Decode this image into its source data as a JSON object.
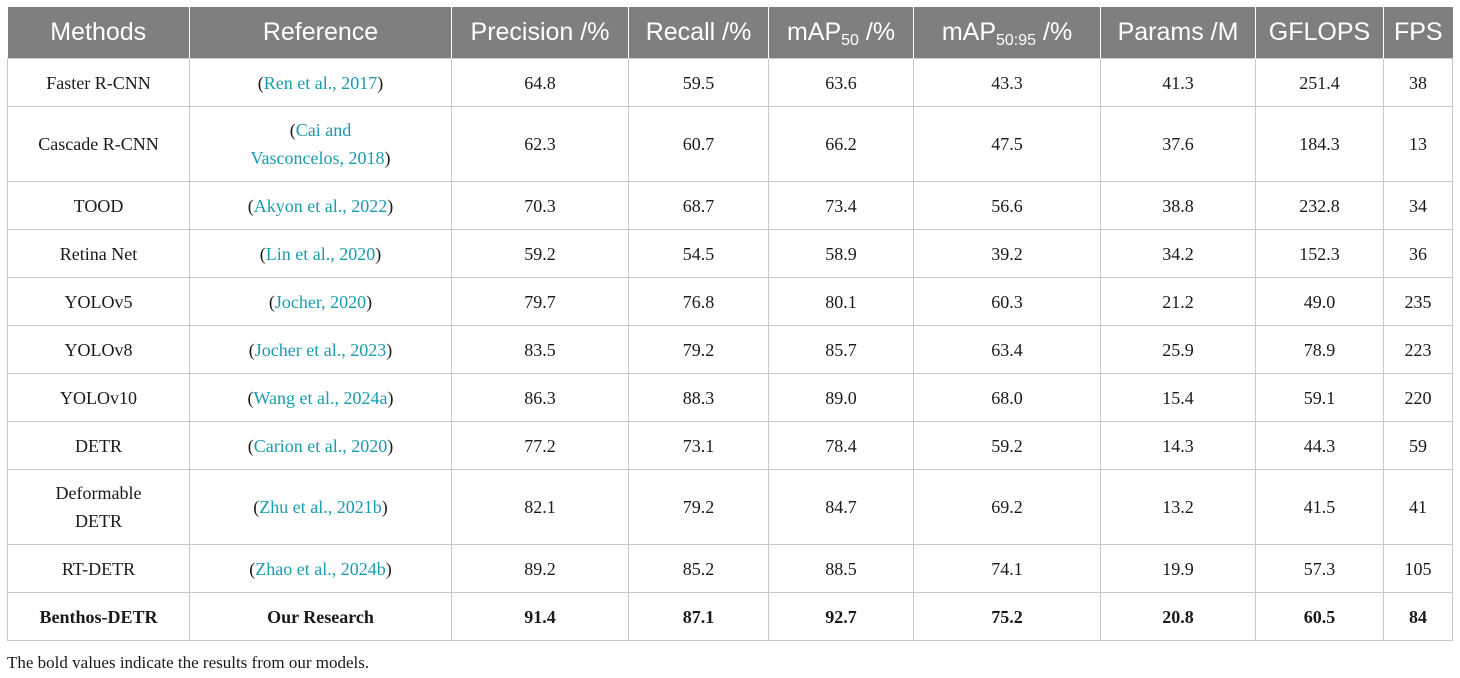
{
  "table": {
    "headers": [
      {
        "text": "Methods"
      },
      {
        "text": "Reference"
      },
      {
        "text": "Precision /%"
      },
      {
        "text": "Recall /%"
      },
      {
        "text": "mAP",
        "sub": "50",
        "suffix": " /%"
      },
      {
        "text": "mAP",
        "sub": "50:95",
        "suffix": " /%"
      },
      {
        "text": "Params /M"
      },
      {
        "text": "GFLOPS"
      },
      {
        "text": "FPS"
      }
    ],
    "rows": [
      {
        "method": "Faster R-CNN",
        "ref_lines": [
          "Ren et al., 2017"
        ],
        "precision": "64.8",
        "recall": "59.5",
        "map50": "63.6",
        "map5095": "43.3",
        "params": "41.3",
        "gflops": "251.4",
        "fps": "38"
      },
      {
        "method": "Cascade R-CNN",
        "ref_lines": [
          "Cai and",
          "Vasconcelos, 2018"
        ],
        "precision": "62.3",
        "recall": "60.7",
        "map50": "66.2",
        "map5095": "47.5",
        "params": "37.6",
        "gflops": "184.3",
        "fps": "13"
      },
      {
        "method": "TOOD",
        "ref_lines": [
          "Akyon et al., 2022"
        ],
        "precision": "70.3",
        "recall": "68.7",
        "map50": "73.4",
        "map5095": "56.6",
        "params": "38.8",
        "gflops": "232.8",
        "fps": "34"
      },
      {
        "method": "Retina Net",
        "ref_lines": [
          "Lin et al., 2020"
        ],
        "precision": "59.2",
        "recall": "54.5",
        "map50": "58.9",
        "map5095": "39.2",
        "params": "34.2",
        "gflops": "152.3",
        "fps": "36"
      },
      {
        "method": "YOLOv5",
        "ref_lines": [
          "Jocher, 2020"
        ],
        "precision": "79.7",
        "recall": "76.8",
        "map50": "80.1",
        "map5095": "60.3",
        "params": "21.2",
        "gflops": "49.0",
        "fps": "235"
      },
      {
        "method": "YOLOv8",
        "ref_lines": [
          "Jocher et al., 2023"
        ],
        "precision": "83.5",
        "recall": "79.2",
        "map50": "85.7",
        "map5095": "63.4",
        "params": "25.9",
        "gflops": "78.9",
        "fps": "223"
      },
      {
        "method": "YOLOv10",
        "ref_lines": [
          "Wang et al., 2024a"
        ],
        "precision": "86.3",
        "recall": "88.3",
        "map50": "89.0",
        "map5095": "68.0",
        "params": "15.4",
        "gflops": "59.1",
        "fps": "220"
      },
      {
        "method": "DETR",
        "ref_lines": [
          "Carion et al., 2020"
        ],
        "precision": "77.2",
        "recall": "73.1",
        "map50": "78.4",
        "map5095": "59.2",
        "params": "14.3",
        "gflops": "44.3",
        "fps": "59"
      },
      {
        "method": "Deformable DETR",
        "ref_lines": [
          "Zhu et al., 2021b"
        ],
        "precision": "82.1",
        "recall": "79.2",
        "map50": "84.7",
        "map5095": "69.2",
        "params": "13.2",
        "gflops": "41.5",
        "fps": "41"
      },
      {
        "method": "RT-DETR",
        "ref_lines": [
          "Zhao et al., 2024b"
        ],
        "precision": "89.2",
        "recall": "85.2",
        "map50": "88.5",
        "map5095": "74.1",
        "params": "19.9",
        "gflops": "57.3",
        "fps": "105"
      },
      {
        "method": "Benthos-DETR",
        "ref_plain": "Our Research",
        "precision": "91.4",
        "recall": "87.1",
        "map50": "92.7",
        "map5095": "75.2",
        "params": "20.8",
        "gflops": "60.5",
        "fps": "84",
        "bold": true
      }
    ]
  },
  "footnote": "The bold values indicate the results from our models.",
  "colors": {
    "header_bg": "#7f7f7f",
    "header_text": "#ffffff",
    "link": "#1a9cb0",
    "border": "#c8c8c8"
  }
}
